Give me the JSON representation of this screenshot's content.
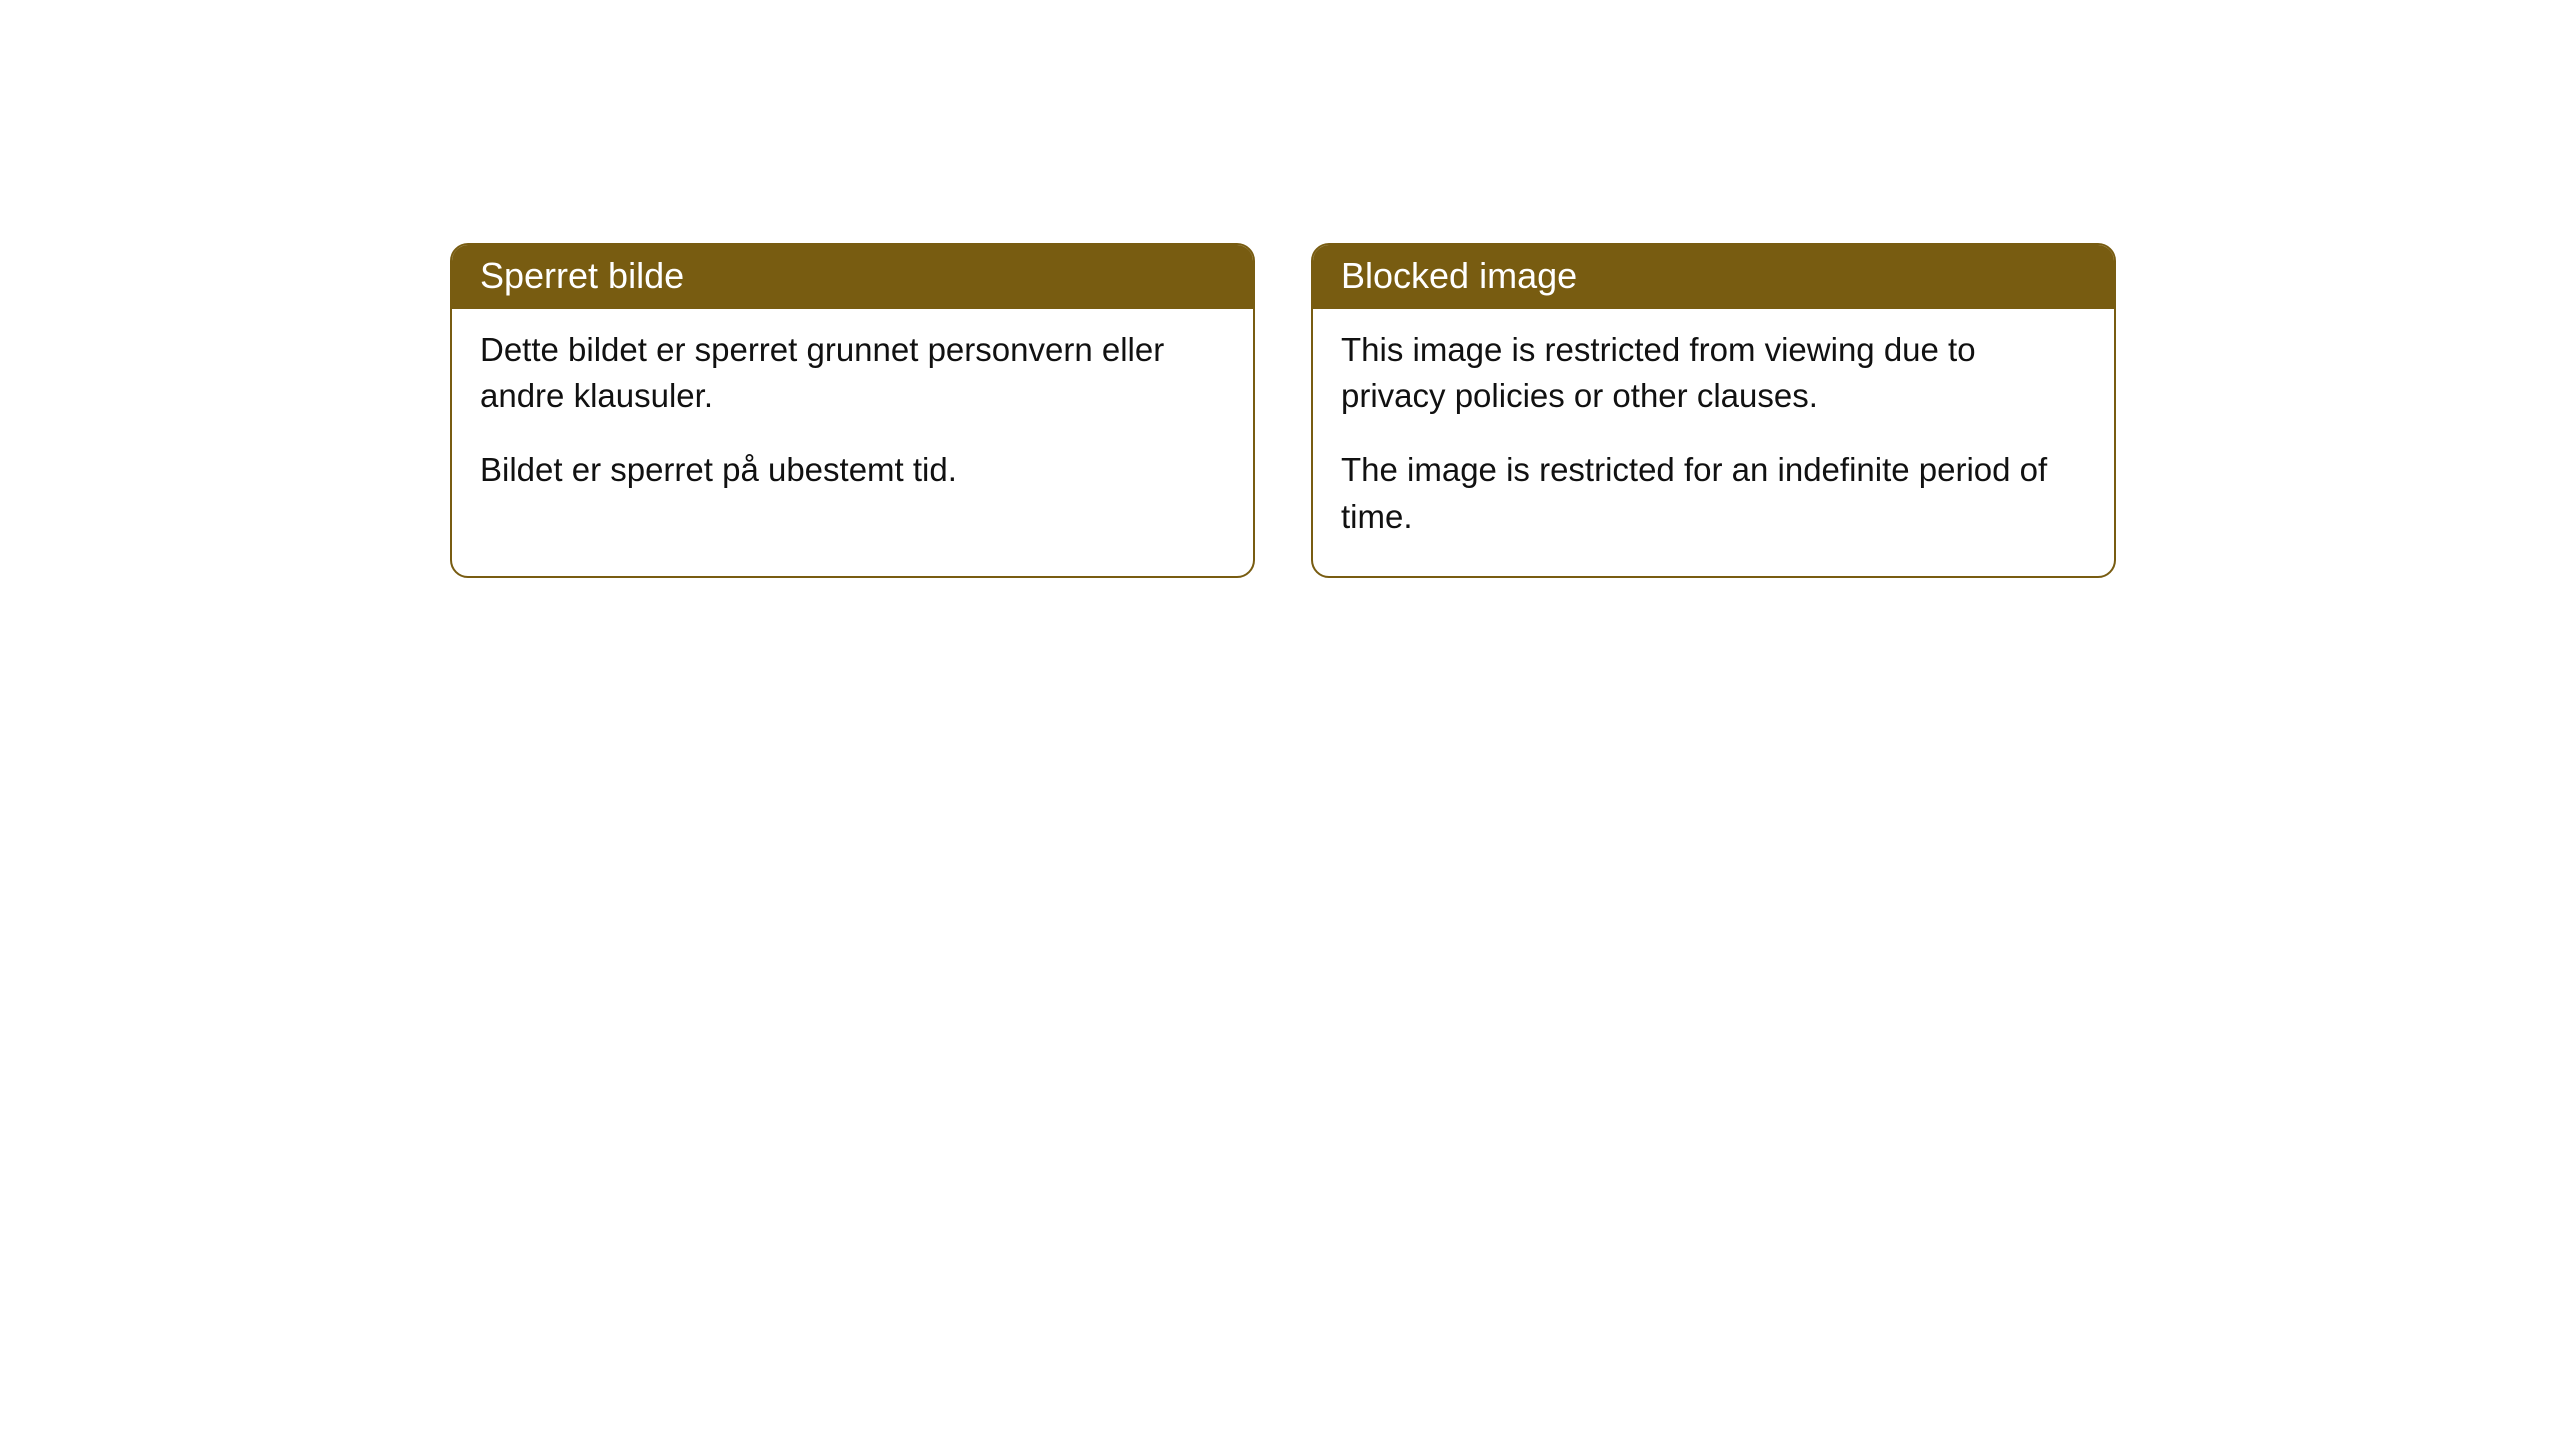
{
  "cards": [
    {
      "title": "Sperret bilde",
      "paragraph1": "Dette bildet er sperret grunnet personvern eller andre klausuler.",
      "paragraph2": "Bildet er sperret på ubestemt tid."
    },
    {
      "title": "Blocked image",
      "paragraph1": "This image is restricted from viewing due to privacy policies or other clauses.",
      "paragraph2": "The image is restricted for an indefinite period of time."
    }
  ],
  "styling": {
    "header_bg_color": "#785c11",
    "header_text_color": "#ffffff",
    "border_color": "#785c11",
    "body_bg_color": "#ffffff",
    "body_text_color": "#111111",
    "border_radius": 18,
    "title_fontsize": 36,
    "body_fontsize": 33
  }
}
